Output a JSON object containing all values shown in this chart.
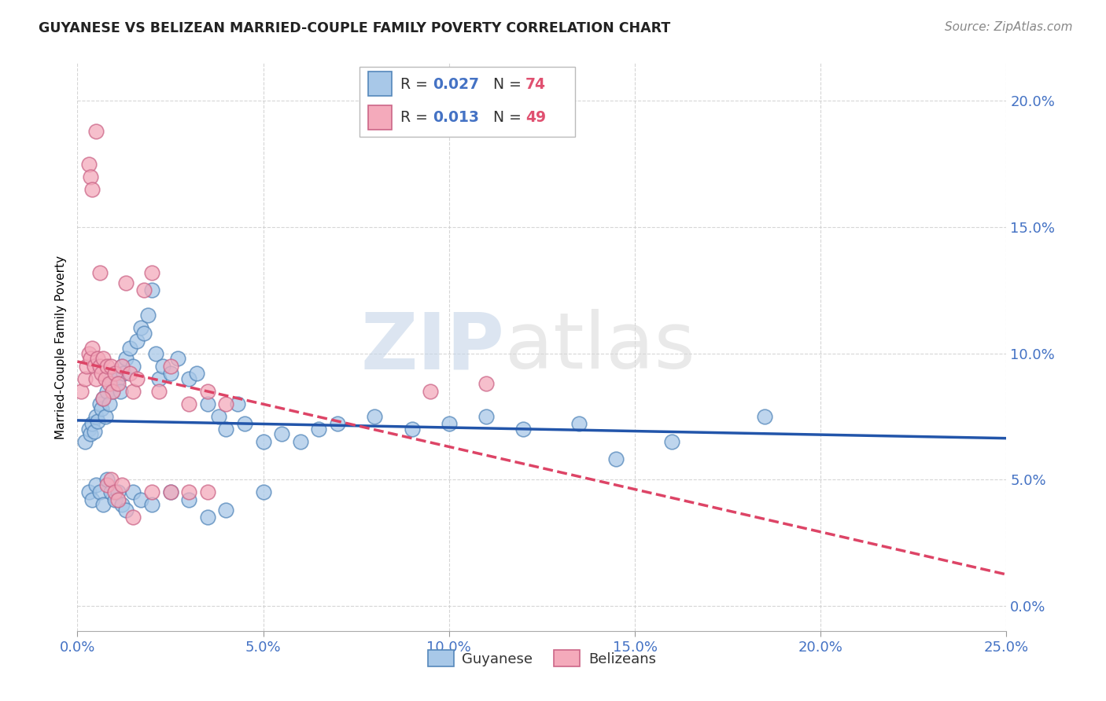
{
  "title": "GUYANESE VS BELIZEAN MARRIED-COUPLE FAMILY POVERTY CORRELATION CHART",
  "source": "Source: ZipAtlas.com",
  "xlabel_vals": [
    0.0,
    5.0,
    10.0,
    15.0,
    20.0,
    25.0
  ],
  "ylabel_vals": [
    0.0,
    5.0,
    10.0,
    15.0,
    20.0
  ],
  "ylabel": "Married-Couple Family Poverty",
  "xmin": 0.0,
  "xmax": 25.0,
  "ymin": -1.0,
  "ymax": 21.5,
  "watermark_zip": "ZIP",
  "watermark_atlas": "atlas",
  "legend_label1": "Guyanese",
  "legend_label2": "Belizeans",
  "legend_R1": "0.027",
  "legend_N1": "74",
  "legend_R2": "0.013",
  "legend_N2": "49",
  "guyanese_color": "#A8C8E8",
  "belizean_color": "#F4AABB",
  "guyanese_edge_color": "#5588BB",
  "belizean_edge_color": "#CC6688",
  "guyanese_line_color": "#2255AA",
  "belizean_line_color": "#DD4466",
  "text_blue": "#4472C4",
  "text_pink": "#E05070",
  "guyanese_x": [
    0.2,
    0.3,
    0.35,
    0.4,
    0.45,
    0.5,
    0.55,
    0.6,
    0.65,
    0.7,
    0.75,
    0.8,
    0.85,
    0.9,
    0.95,
    1.0,
    1.05,
    1.1,
    1.15,
    1.2,
    1.25,
    1.3,
    1.4,
    1.5,
    1.6,
    1.7,
    1.8,
    1.9,
    2.0,
    2.1,
    2.2,
    2.3,
    2.5,
    2.7,
    3.0,
    3.2,
    3.5,
    3.8,
    4.0,
    4.3,
    4.5,
    5.0,
    5.5,
    6.0,
    6.5,
    7.0,
    8.0,
    9.0,
    10.0,
    11.0,
    12.0,
    13.5,
    14.5,
    16.0,
    18.5,
    0.3,
    0.4,
    0.5,
    0.6,
    0.7,
    0.8,
    0.9,
    1.0,
    1.1,
    1.2,
    1.3,
    1.5,
    1.7,
    2.0,
    2.5,
    3.0,
    3.5,
    4.0,
    5.0
  ],
  "guyanese_y": [
    6.5,
    7.0,
    6.8,
    7.2,
    6.9,
    7.5,
    7.3,
    8.0,
    7.8,
    8.2,
    7.5,
    8.5,
    8.0,
    9.0,
    8.5,
    9.2,
    8.8,
    9.0,
    8.5,
    9.5,
    9.2,
    9.8,
    10.2,
    9.5,
    10.5,
    11.0,
    10.8,
    11.5,
    12.5,
    10.0,
    9.0,
    9.5,
    9.2,
    9.8,
    9.0,
    9.2,
    8.0,
    7.5,
    7.0,
    8.0,
    7.2,
    6.5,
    6.8,
    6.5,
    7.0,
    7.2,
    7.5,
    7.0,
    7.2,
    7.5,
    7.0,
    7.2,
    5.8,
    6.5,
    7.5,
    4.5,
    4.2,
    4.8,
    4.5,
    4.0,
    5.0,
    4.5,
    4.2,
    4.5,
    4.0,
    3.8,
    4.5,
    4.2,
    4.0,
    4.5,
    4.2,
    3.5,
    3.8,
    4.5
  ],
  "belizean_x": [
    0.1,
    0.2,
    0.25,
    0.3,
    0.35,
    0.4,
    0.45,
    0.5,
    0.55,
    0.6,
    0.65,
    0.7,
    0.75,
    0.8,
    0.85,
    0.9,
    0.95,
    1.0,
    1.1,
    1.2,
    1.3,
    1.4,
    1.5,
    1.6,
    1.8,
    2.0,
    2.2,
    2.5,
    3.0,
    3.5,
    4.0,
    0.3,
    0.35,
    0.4,
    0.5,
    0.6,
    0.7,
    0.8,
    0.9,
    1.0,
    1.1,
    1.2,
    1.5,
    2.0,
    2.5,
    3.0,
    3.5,
    9.5,
    11.0
  ],
  "belizean_y": [
    8.5,
    9.0,
    9.5,
    10.0,
    9.8,
    10.2,
    9.5,
    9.0,
    9.8,
    9.5,
    9.2,
    9.8,
    9.0,
    9.5,
    8.8,
    9.5,
    8.5,
    9.2,
    8.8,
    9.5,
    12.8,
    9.2,
    8.5,
    9.0,
    12.5,
    13.2,
    8.5,
    9.5,
    8.0,
    8.5,
    8.0,
    17.5,
    17.0,
    16.5,
    18.8,
    13.2,
    8.2,
    4.8,
    5.0,
    4.5,
    4.2,
    4.8,
    3.5,
    4.5,
    4.5,
    4.5,
    4.5,
    8.5,
    8.8
  ]
}
